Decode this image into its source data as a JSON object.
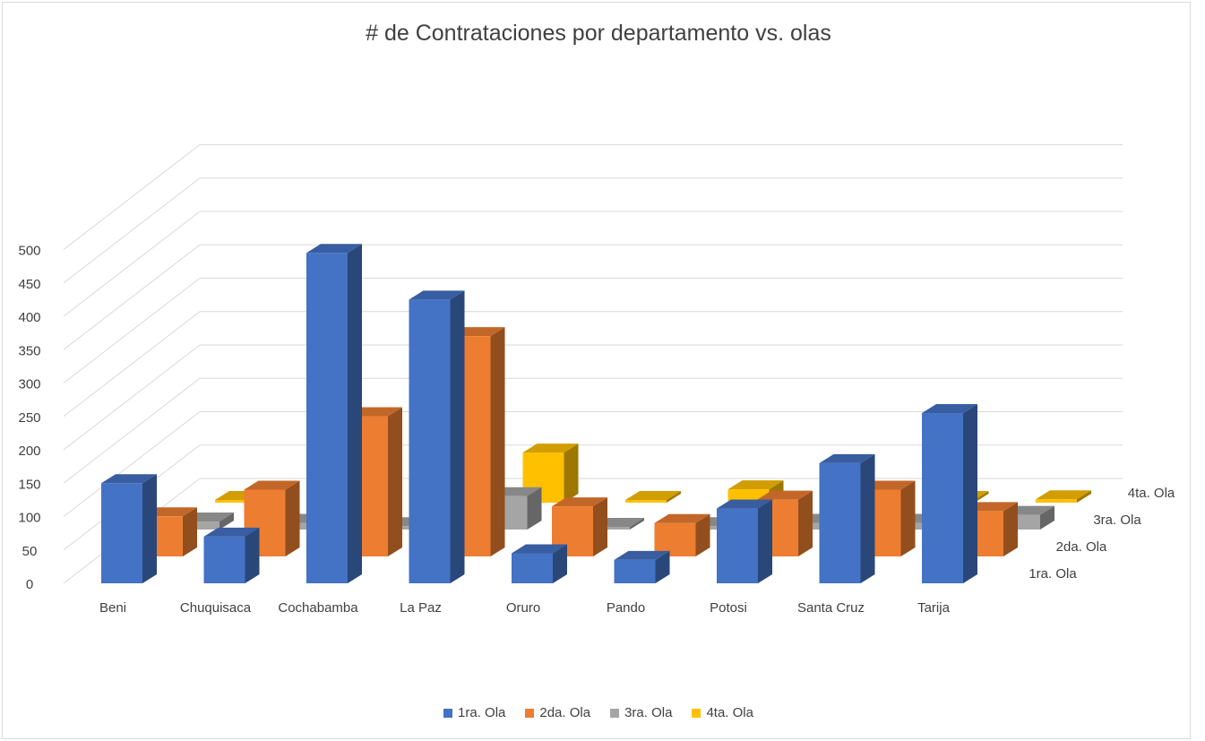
{
  "chart_data": {
    "type": "bar",
    "variant": "3d-column",
    "title": "# de Contrataciones por departamento vs. olas",
    "xlabel": "",
    "ylabel": "",
    "ylim": [
      0,
      500
    ],
    "yticks": [
      "0",
      "50",
      "100",
      "150",
      "200",
      "250",
      "300",
      "350",
      "400",
      "450",
      "500"
    ],
    "grid": true,
    "legend_position": "bottom",
    "categories": [
      "Beni",
      "Chuquisaca",
      "Cochabamba",
      "La Paz",
      "Oruro",
      "Pando",
      "Potosi",
      "Santa Cruz",
      "Tarija"
    ],
    "series": [
      {
        "name": "1ra. Ola",
        "color": "#4472C4",
        "values": [
          150,
          70,
          495,
          425,
          45,
          35,
          112,
          180,
          255
        ]
      },
      {
        "name": "2da. Ola",
        "color": "#ED7D31",
        "values": [
          60,
          100,
          210,
          330,
          75,
          50,
          85,
          100,
          68
        ]
      },
      {
        "name": "3ra. Ola",
        "color": "#A5A5A5",
        "values": [
          12,
          10,
          5,
          50,
          0,
          5,
          10,
          10,
          22
        ]
      },
      {
        "name": "4ta. Ola",
        "color": "#FFC000",
        "values": [
          3,
          2,
          0,
          75,
          0,
          20,
          3,
          0,
          5
        ]
      }
    ]
  }
}
